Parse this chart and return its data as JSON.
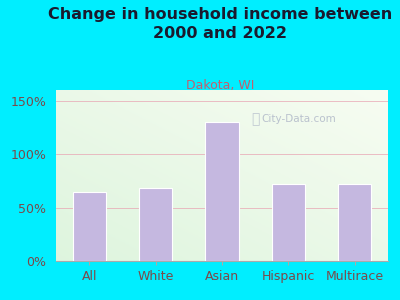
{
  "title": "Change in household income between\n2000 and 2022",
  "subtitle": "Dakota, WI",
  "categories": [
    "All",
    "White",
    "Asian",
    "Hispanic",
    "Multirace"
  ],
  "values": [
    65,
    68,
    130,
    72,
    72
  ],
  "bar_color": "#c5b8e0",
  "bar_edge_color": "#ffffff",
  "background_outer": "#00eeff",
  "plot_bg_color": "#e8f5e9",
  "grid_color": "#e8a0b0",
  "title_color": "#1a1a2e",
  "subtitle_color": "#c06070",
  "tick_label_color": "#7a4a4a",
  "ylim": [
    0,
    160
  ],
  "yticks": [
    0,
    50,
    100,
    150
  ],
  "ytick_labels": [
    "0%",
    "50%",
    "100%",
    "150%"
  ],
  "title_fontsize": 11.5,
  "subtitle_fontsize": 9,
  "tick_fontsize": 9,
  "watermark": "City-Data.com"
}
